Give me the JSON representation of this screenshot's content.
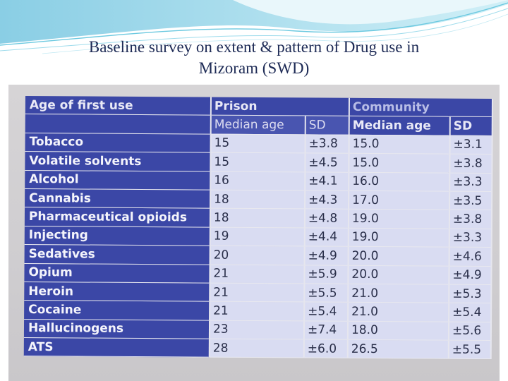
{
  "slide": {
    "title_line1": "Baseline survey on extent & pattern of Drug use in",
    "title_line2": "Mizoram (SWD)"
  },
  "table": {
    "header": {
      "row_label": "Age of first use",
      "group_prison": "Prison",
      "group_community": "Community",
      "median_age": "Median age",
      "sd": "SD"
    },
    "rows": [
      {
        "label": "Tobacco",
        "prison_median": "15",
        "prison_sd": "±3.8",
        "community_median": "15.0",
        "community_sd": "±3.1"
      },
      {
        "label": "Volatile solvents",
        "prison_median": "15",
        "prison_sd": "±4.5",
        "community_median": "15.0",
        "community_sd": "±3.8"
      },
      {
        "label": "Alcohol",
        "prison_median": "16",
        "prison_sd": "±4.1",
        "community_median": "16.0",
        "community_sd": "±3.3"
      },
      {
        "label": "Cannabis",
        "prison_median": "18",
        "prison_sd": "±4.3",
        "community_median": "17.0",
        "community_sd": "±3.5"
      },
      {
        "label": "Pharmaceutical opioids",
        "prison_median": "18",
        "prison_sd": "±4.8",
        "community_median": "19.0",
        "community_sd": "±3.8"
      },
      {
        "label": "Injecting",
        "prison_median": "19",
        "prison_sd": "±4.4",
        "community_median": "19.0",
        "community_sd": "±3.3"
      },
      {
        "label": "Sedatives",
        "prison_median": "20",
        "prison_sd": "±4.9",
        "community_median": "20.0",
        "community_sd": "±4.6"
      },
      {
        "label": "Opium",
        "prison_median": "21",
        "prison_sd": "±5.9",
        "community_median": "20.0",
        "community_sd": "±4.9"
      },
      {
        "label": "Heroin",
        "prison_median": "21",
        "prison_sd": "±5.5",
        "community_median": "21.0",
        "community_sd": "±5.3"
      },
      {
        "label": "Cocaine",
        "prison_median": "21",
        "prison_sd": "±5.4",
        "community_median": "21.0",
        "community_sd": "±5.4"
      },
      {
        "label": "Hallucinogens",
        "prison_median": "23",
        "prison_sd": "±7.4",
        "community_median": "18.0",
        "community_sd": "±5.6"
      },
      {
        "label": "ATS",
        "prison_median": "28",
        "prison_sd": "±6.0",
        "community_median": "26.5",
        "community_sd": "±5.5"
      }
    ]
  },
  "colors": {
    "header_blue": "#3b47a6",
    "cell_lavender": "#d9dcf2",
    "title_navy": "#1d2a55",
    "wave_cyan": "#5ac3dc"
  }
}
